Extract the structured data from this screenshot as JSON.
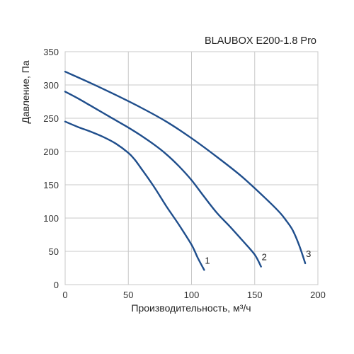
{
  "chart_data": {
    "type": "line",
    "title": "BLAUBOX E200-1.8 Pro",
    "xlabel": "Производительность, м³/ч",
    "ylabel": "Давление, Па",
    "xlim": [
      0,
      200
    ],
    "ylim": [
      0,
      350
    ],
    "xticks": [
      0,
      50,
      100,
      150,
      200
    ],
    "yticks": [
      0,
      50,
      100,
      150,
      200,
      250,
      300,
      350
    ],
    "grid": true,
    "line_color": "#1f4e8c",
    "series": [
      {
        "name": "1",
        "x": [
          0,
          10,
          20,
          30,
          40,
          50,
          55,
          60,
          70,
          80,
          90,
          100,
          105,
          110
        ],
        "y": [
          245,
          237,
          230,
          222,
          212,
          198,
          188,
          175,
          148,
          118,
          90,
          60,
          40,
          22
        ]
      },
      {
        "name": "2",
        "x": [
          0,
          10,
          20,
          30,
          40,
          50,
          60,
          70,
          80,
          90,
          100,
          110,
          120,
          130,
          140,
          150,
          155
        ],
        "y": [
          290,
          280,
          269,
          258,
          247,
          236,
          224,
          211,
          196,
          178,
          157,
          132,
          108,
          88,
          67,
          45,
          27
        ]
      },
      {
        "name": "3",
        "x": [
          0,
          20,
          40,
          60,
          80,
          100,
          120,
          140,
          160,
          170,
          175,
          180,
          185,
          190
        ],
        "y": [
          320,
          303,
          285,
          266,
          245,
          220,
          192,
          162,
          127,
          108,
          96,
          82,
          60,
          32
        ]
      }
    ]
  }
}
